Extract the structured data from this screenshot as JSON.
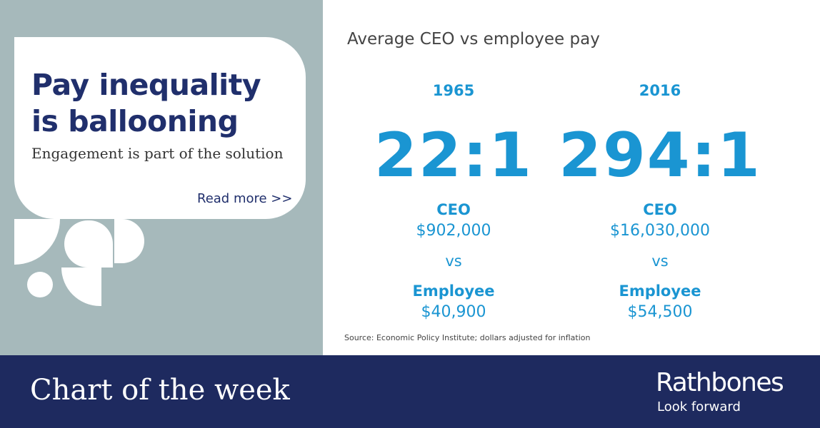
{
  "headline": "Pay inequality is ballooning",
  "subtitle": "Engagement is part of the solution",
  "read_more": "Read more >>",
  "chart_title": "Average CEO vs employee pay",
  "columns": [
    {
      "year": "1965",
      "ratio": "22:1",
      "ceo_label": "CEO",
      "ceo_pay": "$902,000",
      "vs": "vs",
      "employee_label": "Employee",
      "employee_pay": "$40,900"
    },
    {
      "year": "2016",
      "ratio": "294:1",
      "ceo_label": "CEO",
      "ceo_pay": "$16,030,000",
      "vs": "vs",
      "employee_label": "Employee",
      "employee_pay": "$54,500"
    }
  ],
  "source": "Source: Economic Policy Institute; dollars adjusted for inflation",
  "footer": {
    "title": "Chart of the week",
    "brand": "Rathbones",
    "tagline": "Look forward"
  },
  "colors": {
    "navy": "#1e2a5f",
    "accent_blue": "#1a95d2",
    "panel_grey": "#a6b9bb"
  }
}
